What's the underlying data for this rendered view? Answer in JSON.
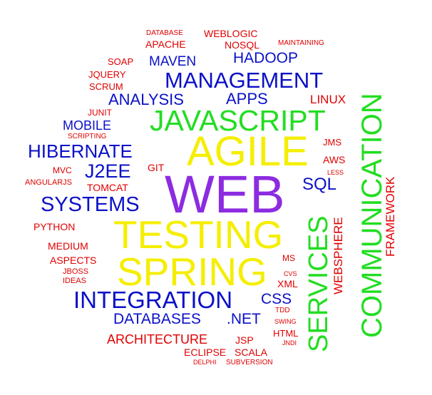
{
  "colors": {
    "red": "#e00000",
    "blue": "#0a10c8",
    "green": "#22dd22",
    "yellow": "#f5ee00",
    "purple": "#8c2be0"
  },
  "words": [
    {
      "text": "DATABASE",
      "color": "red"
    },
    {
      "text": "WEBLOGIC",
      "color": "red"
    },
    {
      "text": "APACHE",
      "color": "red"
    },
    {
      "text": "NOSQL",
      "color": "red"
    },
    {
      "text": "MAINTAINING",
      "color": "red"
    },
    {
      "text": "SOAP",
      "color": "red"
    },
    {
      "text": "MAVEN",
      "color": "blue"
    },
    {
      "text": "HADOOP",
      "color": "blue"
    },
    {
      "text": "JQUERY",
      "color": "red"
    },
    {
      "text": "MANAGEMENT",
      "color": "blue"
    },
    {
      "text": "SCRUM",
      "color": "red"
    },
    {
      "text": "ANALYSIS",
      "color": "blue"
    },
    {
      "text": "APPS",
      "color": "blue"
    },
    {
      "text": "LINUX",
      "color": "red"
    },
    {
      "text": "JUNIT",
      "color": "red"
    },
    {
      "text": "JAVASCRIPT",
      "color": "green"
    },
    {
      "text": "MOBILE",
      "color": "blue"
    },
    {
      "text": "SCRIPTING",
      "color": "red"
    },
    {
      "text": "JMS",
      "color": "red"
    },
    {
      "text": "HIBERNATE",
      "color": "blue"
    },
    {
      "text": "AGILE",
      "color": "yellow"
    },
    {
      "text": "AWS",
      "color": "red"
    },
    {
      "text": "MVC",
      "color": "red"
    },
    {
      "text": "J2EE",
      "color": "blue"
    },
    {
      "text": "GIT",
      "color": "red"
    },
    {
      "text": "LESS",
      "color": "red"
    },
    {
      "text": "ANGULARJS",
      "color": "red"
    },
    {
      "text": "SQL",
      "color": "blue"
    },
    {
      "text": "TOMCAT",
      "color": "red"
    },
    {
      "text": "WEB",
      "color": "purple"
    },
    {
      "text": "SYSTEMS",
      "color": "blue"
    },
    {
      "text": "PYTHON",
      "color": "red"
    },
    {
      "text": "TESTING",
      "color": "yellow"
    },
    {
      "text": "MEDIUM",
      "color": "red"
    },
    {
      "text": "ASPECTS",
      "color": "red"
    },
    {
      "text": "MS",
      "color": "red"
    },
    {
      "text": "SPRING",
      "color": "yellow"
    },
    {
      "text": "JBOSS",
      "color": "red"
    },
    {
      "text": "IDEAS",
      "color": "red"
    },
    {
      "text": "CVS",
      "color": "red"
    },
    {
      "text": "XML",
      "color": "red"
    },
    {
      "text": "INTEGRATION",
      "color": "blue"
    },
    {
      "text": "CSS",
      "color": "blue"
    },
    {
      "text": "TDD",
      "color": "red"
    },
    {
      "text": "DATABASES",
      "color": "blue"
    },
    {
      "text": ".NET",
      "color": "blue"
    },
    {
      "text": "SWING",
      "color": "red"
    },
    {
      "text": "HTML",
      "color": "red"
    },
    {
      "text": "ARCHITECTURE",
      "color": "red"
    },
    {
      "text": "JSP",
      "color": "red"
    },
    {
      "text": "JNDI",
      "color": "red"
    },
    {
      "text": "ECLIPSE",
      "color": "red"
    },
    {
      "text": "SCALA",
      "color": "red"
    },
    {
      "text": "DELPHI",
      "color": "red"
    },
    {
      "text": "SUBVERSION",
      "color": "red"
    },
    {
      "text": "COMMUNICATION",
      "color": "green"
    },
    {
      "text": "SERVICES",
      "color": "green"
    },
    {
      "text": "WEBSPHERE",
      "color": "red"
    },
    {
      "text": "FRAMEWORK",
      "color": "red"
    }
  ]
}
